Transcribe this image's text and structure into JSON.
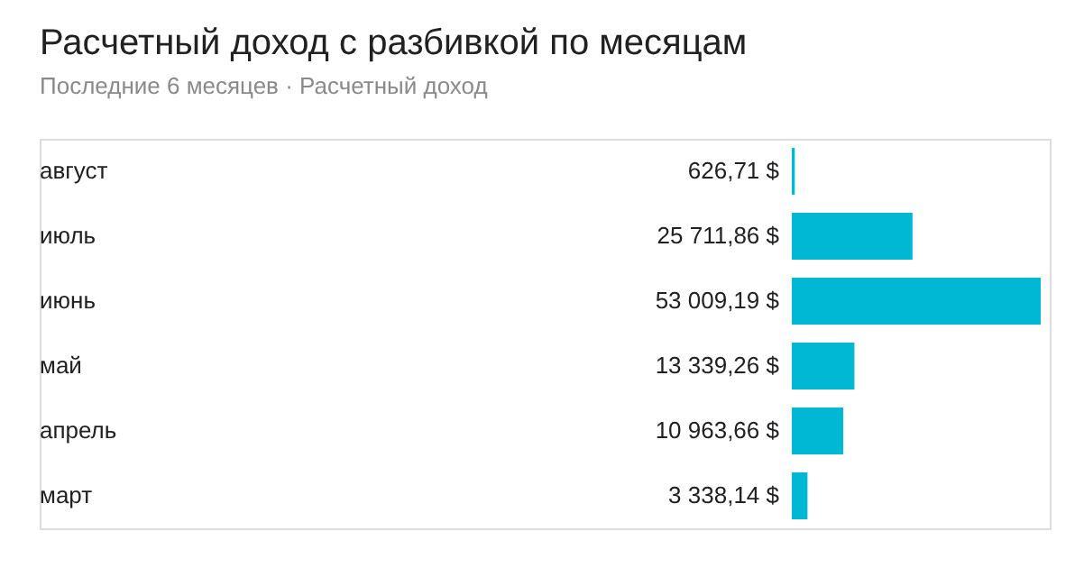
{
  "chart_data": {
    "type": "bar",
    "orientation": "horizontal",
    "title": "Расчетный доход с разбивкой по месяцам",
    "subtitle": "Последние 6 месяцев · Расчетный доход",
    "categories": [
      "август",
      "июль",
      "июнь",
      "май",
      "апрель",
      "март"
    ],
    "values": [
      626.71,
      25711.86,
      53009.19,
      13339.26,
      10963.66,
      3338.14
    ],
    "value_labels": [
      "626,71 $",
      "25 711,86 $",
      "53 009,19 $",
      "13 339,26 $",
      "10 963,66 $",
      "3 338,14 $"
    ],
    "color": "#00b8d4"
  }
}
